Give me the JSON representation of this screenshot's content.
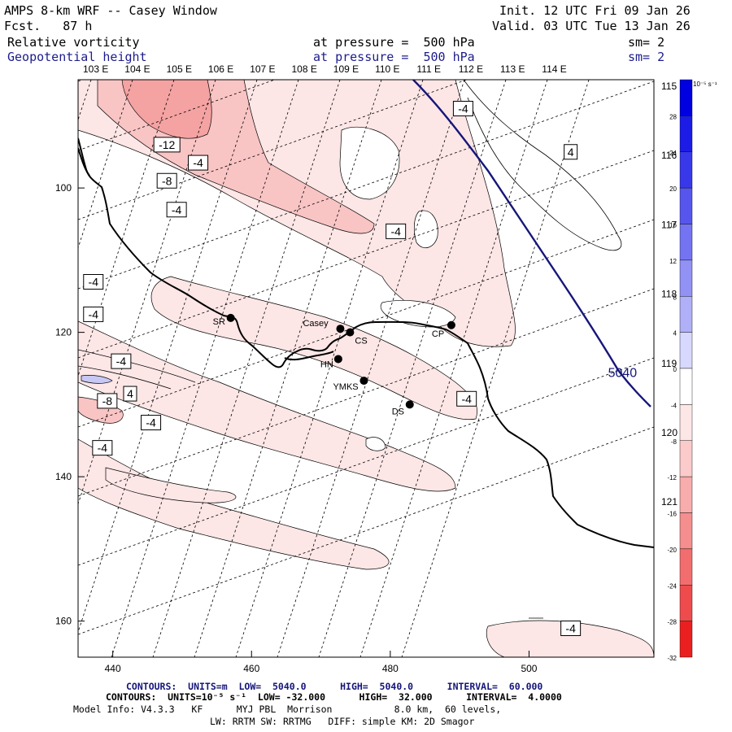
{
  "header": {
    "title": "AMPS 8-km WRF -- Casey Window",
    "fcst": "Fcst.   87 h",
    "init": "Init. 12 UTC Fri 09 Jan 26",
    "valid": "Valid. 03 UTC Tue 13 Jan 26",
    "field1_name": "Relative vorticity",
    "field1_level": "at pressure =  500 hPa",
    "field1_sm": "sm= 2",
    "field2_name": "Geopotential height",
    "field2_level": "at pressure =  500 hPa",
    "field2_sm": "sm= 2"
  },
  "colors": {
    "geopotential": "#16167a",
    "coast": "#000000",
    "fill_light": "#fde6e6",
    "fill_med": "#f9c4c4",
    "fill_dark": "#f4a2a2",
    "fill_blue_light": "#c8c8f5"
  },
  "footer": {
    "line1": "CONTOURS:  UNITS=m  LOW=  5040.0      HIGH=  5040.0      INTERVAL=  60.000",
    "line2": "CONTOURS:  UNITS=10⁻⁵ s⁻¹  LOW= -32.000      HIGH=  32.000      INTERVAL=  4.0000",
    "line3": "Model Info: V4.3.3   KF      MYJ PBL  Morrison           8.0 km,  60 levels,",
    "line4": "LW: RRTM SW: RRTMG   DIFF: simple KM: 2D Smagor"
  },
  "chart_data": {
    "type": "contour-map",
    "xlim": [
      435,
      518
    ],
    "ylim": [
      165,
      85
    ],
    "x_ticks": [
      440,
      460,
      480,
      500
    ],
    "y_ticks": [
      100,
      120,
      140,
      160
    ],
    "lon_labels": [
      "103 E",
      "104 E",
      "105 E",
      "106 E",
      "107 E",
      "108 E",
      "109 E",
      "110 E",
      "111 E",
      "112 E",
      "113 E",
      "114 E"
    ],
    "lon_labels_right": [
      "115 E",
      "116 E",
      "117 E",
      "118 E",
      "119 E",
      "120 E",
      "121 E"
    ],
    "colorbar": {
      "unit_label": "10⁻⁵ s⁻¹",
      "levels": [
        -32,
        -28,
        -24,
        -20,
        -16,
        -12,
        -8,
        -4,
        0,
        4,
        8,
        12,
        16,
        20,
        24,
        28,
        32
      ],
      "tick_labels": [
        "32",
        "28",
        "24",
        "20",
        "16",
        "12",
        "8",
        "4",
        "0",
        "-4",
        "-8",
        "-12",
        "-16",
        "-20",
        "-24",
        "-28",
        "-32"
      ]
    },
    "stations": [
      {
        "name": "SR",
        "x": 457.0,
        "y": 118.0
      },
      {
        "name": "Casey",
        "x": 472.8,
        "y": 119.5
      },
      {
        "name": "CS",
        "x": 474.2,
        "y": 120.0
      },
      {
        "name": "CP",
        "x": 488.8,
        "y": 119.0
      },
      {
        "name": "HN",
        "x": 472.5,
        "y": 123.7
      },
      {
        "name": "YMKS",
        "x": 476.2,
        "y": 126.7
      },
      {
        "name": "DS",
        "x": 482.8,
        "y": 130.0
      }
    ],
    "contour_labels": [
      {
        "text": "-4",
        "x": 490.5,
        "y": 89.0
      },
      {
        "text": "4",
        "x": 506.0,
        "y": 95.0
      },
      {
        "text": "-12",
        "x": 447.8,
        "y": 94.0
      },
      {
        "text": "-4",
        "x": 452.3,
        "y": 96.5
      },
      {
        "text": "-8",
        "x": 447.8,
        "y": 99.0
      },
      {
        "text": "-4",
        "x": 449.2,
        "y": 103.0
      },
      {
        "text": "-4",
        "x": 480.8,
        "y": 106.0
      },
      {
        "text": "-4",
        "x": 437.2,
        "y": 113.0
      },
      {
        "text": "-4",
        "x": 437.2,
        "y": 117.5
      },
      {
        "text": "-4",
        "x": 441.2,
        "y": 124.0
      },
      {
        "text": "-8",
        "x": 439.2,
        "y": 129.5
      },
      {
        "text": "4",
        "x": 442.5,
        "y": 128.5
      },
      {
        "text": "-4",
        "x": 445.5,
        "y": 132.5
      },
      {
        "text": "-4",
        "x": 438.5,
        "y": 136.0
      },
      {
        "text": "-4",
        "x": 491.0,
        "y": 129.2
      },
      {
        "text": "-4",
        "x": 506.0,
        "y": 161.0
      }
    ],
    "height_contour_label": {
      "text": "5040",
      "x": 513.5,
      "y": 125.5
    }
  }
}
